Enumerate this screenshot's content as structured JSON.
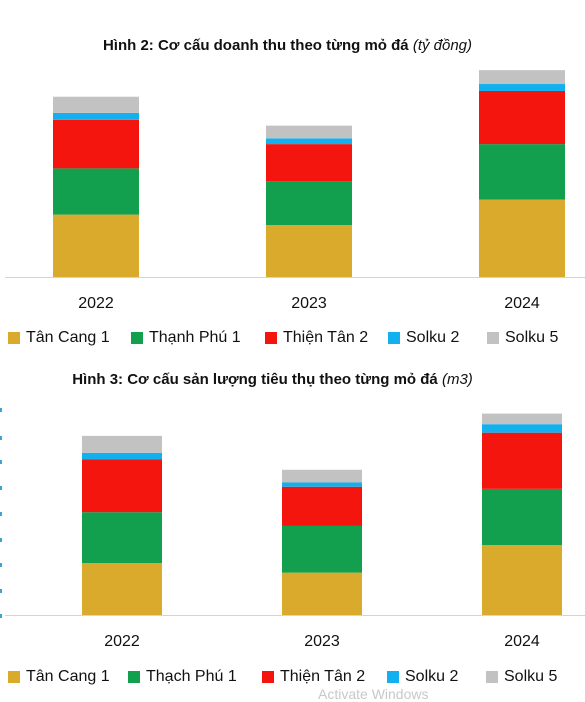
{
  "chart_data": [
    {
      "type": "bar",
      "stacked": true,
      "title": "Hình 2: Cơ cấu doanh thu theo từng mỏ đá",
      "unit": "(tỷ đồng)",
      "categories": [
        "2022",
        "2023",
        "2024"
      ],
      "series": [
        {
          "name": "Tân Cang 1",
          "color": "#DAAA2C",
          "values": [
            54,
            45,
            67
          ]
        },
        {
          "name": "Thạnh Phú 1",
          "color": "#12A04F",
          "values": [
            40,
            38,
            48
          ]
        },
        {
          "name": "Thiện Tân 2",
          "color": "#F4160E",
          "values": [
            42,
            32,
            46
          ]
        },
        {
          "name": "Solku 2",
          "color": "#12B0EE",
          "values": [
            6,
            5,
            6
          ]
        },
        {
          "name": "Solku 5",
          "color": "#C2C2C2",
          "values": [
            14,
            11,
            12
          ]
        }
      ],
      "ylim": [
        0,
        180
      ],
      "grid": false,
      "legend": "bottom"
    },
    {
      "type": "bar",
      "stacked": true,
      "title": "Hình 3: Cơ cấu sản lượng tiêu thụ theo từng mỏ đá",
      "unit": "(m3)",
      "categories": [
        "2022",
        "2023",
        "2024"
      ],
      "series": [
        {
          "name": "Tân Cang 1",
          "color": "#DAAA2C",
          "values": [
            49,
            40,
            66
          ]
        },
        {
          "name": "Thạch Phú 1",
          "color": "#12A04F",
          "values": [
            48,
            44,
            53
          ]
        },
        {
          "name": "Thiện Tân 2",
          "color": "#F4160E",
          "values": [
            50,
            37,
            53
          ]
        },
        {
          "name": "Solku 2",
          "color": "#12B0EE",
          "values": [
            6,
            4,
            8
          ]
        },
        {
          "name": "Solku 5",
          "color": "#C2C2C2",
          "values": [
            16,
            12,
            10
          ]
        }
      ],
      "ylim": [
        0,
        200
      ],
      "grid": false,
      "legend": "bottom"
    }
  ],
  "watermark": "Activate Windows"
}
